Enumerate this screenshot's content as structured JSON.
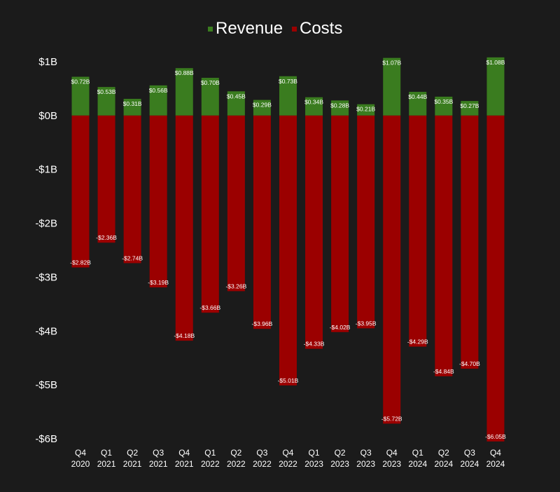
{
  "chart_data": {
    "type": "bar",
    "stacked": true,
    "title": "",
    "xlabel": "",
    "ylabel": "",
    "ylim": [
      -6,
      1
    ],
    "legend_position": "top-center",
    "grid": false,
    "categories": [
      [
        "Q4",
        "2020"
      ],
      [
        "Q1",
        "2021"
      ],
      [
        "Q2",
        "2021"
      ],
      [
        "Q3",
        "2021"
      ],
      [
        "Q4",
        "2021"
      ],
      [
        "Q1",
        "2022"
      ],
      [
        "Q2",
        "2022"
      ],
      [
        "Q3",
        "2022"
      ],
      [
        "Q4",
        "2022"
      ],
      [
        "Q1",
        "2023"
      ],
      [
        "Q2",
        "2023"
      ],
      [
        "Q3",
        "2023"
      ],
      [
        "Q4",
        "2023"
      ],
      [
        "Q1",
        "2024"
      ],
      [
        "Q2",
        "2024"
      ],
      [
        "Q3",
        "2024"
      ],
      [
        "Q4",
        "2024"
      ]
    ],
    "yticks": [
      {
        "value": 1,
        "label": "$1B"
      },
      {
        "value": 0,
        "label": "$0B"
      },
      {
        "value": -1,
        "label": "-$1B"
      },
      {
        "value": -2,
        "label": "-$2B"
      },
      {
        "value": -3,
        "label": "-$3B"
      },
      {
        "value": -4,
        "label": "-$4B"
      },
      {
        "value": -5,
        "label": "-$5B"
      },
      {
        "value": -6,
        "label": "-$6B"
      }
    ],
    "series": [
      {
        "name": "Revenue",
        "color": "#3a7c1f",
        "values": [
          0.72,
          0.53,
          0.31,
          0.56,
          0.88,
          0.7,
          0.45,
          0.29,
          0.73,
          0.34,
          0.28,
          0.21,
          1.07,
          0.44,
          0.35,
          0.27,
          1.08
        ],
        "labels": [
          "$0.72B",
          "$0.53B",
          "$0.31B",
          "$0.56B",
          "$0.88B",
          "$0.70B",
          "$0.45B",
          "$0.29B",
          "$0.73B",
          "$0.34B",
          "$0.28B",
          "$0.21B",
          "$1.07B",
          "$0.44B",
          "$0.35B",
          "$0.27B",
          "$1.08B"
        ]
      },
      {
        "name": "Costs",
        "color": "#9b0000",
        "values": [
          -2.82,
          -2.36,
          -2.74,
          -3.19,
          -4.18,
          -3.66,
          -3.26,
          -3.96,
          -5.01,
          -4.33,
          -4.02,
          -3.95,
          -5.72,
          -4.29,
          -4.84,
          -4.7,
          -6.05
        ],
        "labels": [
          "-$2.82B",
          "-$2.36B",
          "-$2.74B",
          "-$3.19B",
          "-$4.18B",
          "-$3.66B",
          "-$3.26B",
          "-$3.96B",
          "-$5.01B",
          "-$4.33B",
          "-$4.02B",
          "-$3.95B",
          "-$5.72B",
          "-$4.29B",
          "-$4.84B",
          "-$4.70B",
          "-$6.05B"
        ]
      }
    ]
  }
}
